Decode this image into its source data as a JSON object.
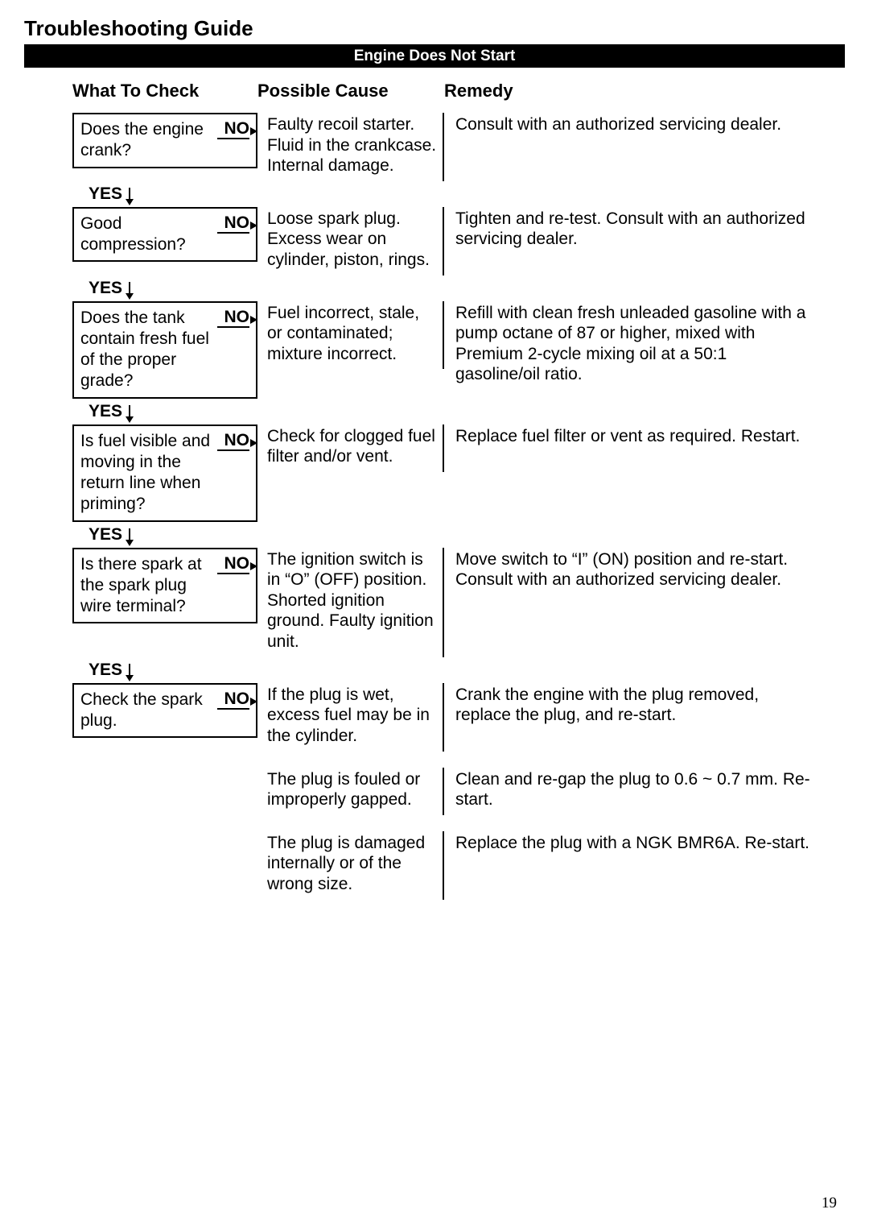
{
  "page": {
    "title": "Troubleshooting Guide",
    "banner": "Engine Does Not Start",
    "page_number": "19"
  },
  "columns": {
    "c1": "What To Check",
    "c2": "Possible Cause",
    "c3": "Remedy"
  },
  "labels": {
    "yes": "YES",
    "no": "NO"
  },
  "steps": [
    {
      "check": "Does the engine crank?",
      "causes": [
        "Faulty recoil starter. Fluid in the crankcase. Internal damage."
      ],
      "remedies": [
        "Consult with an authorized servicing dealer."
      ]
    },
    {
      "check": "Good compression?",
      "causes": [
        "Loose spark plug. Excess wear on cylinder, piston, rings."
      ],
      "remedies": [
        "Tighten and re-test. Consult with an authorized servicing dealer."
      ]
    },
    {
      "check": "Does the tank contain fresh fuel of the proper grade?",
      "causes": [
        "Fuel incorrect, stale, or contaminated; mixture incorrect."
      ],
      "remedies": [
        "Refill with clean fresh unleaded gasoline with a pump octane of 87 or higher, mixed with Premium 2-cycle mixing oil at a 50:1 gasoline/oil ratio."
      ]
    },
    {
      "check": "Is fuel visible and moving in the return line when priming?",
      "causes": [
        "Check for clogged fuel filter and/or vent."
      ],
      "remedies": [
        "Replace fuel filter or vent as required. Restart."
      ]
    },
    {
      "check": "Is there spark at the spark plug wire terminal?",
      "causes": [
        "The ignition switch   is in “O” (OFF) position. Shorted ignition ground. Faulty ignition unit."
      ],
      "remedies": [
        "Move switch to “I” (ON) position and re-start. Consult with an authorized servicing dealer."
      ]
    },
    {
      "check": "Check the spark plug.",
      "causes": [
        "If the plug is wet, excess fuel may be in the cylinder.",
        "The plug is fouled or improperly gapped.",
        "The plug is damaged internally or of the wrong size."
      ],
      "remedies": [
        "Crank the engine with the plug removed, replace the plug, and re-start.",
        "Clean and re-gap the plug to 0.6 ~ 0.7 mm. Re-start.",
        "Replace the plug with a NGK BMR6A. Re-start."
      ]
    }
  ]
}
